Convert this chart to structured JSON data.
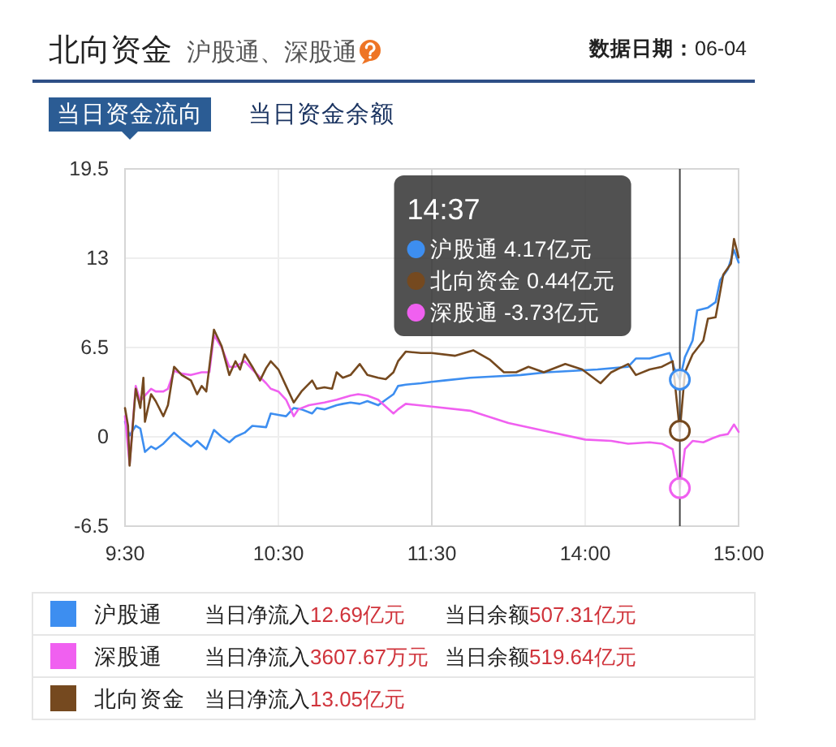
{
  "chart_data": [
    {
      "type": "line",
      "title": "北向资金",
      "subtitle": "沪股通、深股通",
      "annotations": [
        "数据日期：06-04",
        "当日资金流向",
        "当日资金余额",
        "当日净流入12.69亿元",
        "当日余额507.31亿元",
        "当日净流入3607.67万元",
        "当日余额519.64亿元",
        "当日净流入13.05亿元"
      ],
      "xlim": [
        9.5,
        11.5
      ],
      "xticks": [
        {
          "value": 9.5,
          "label": "9:30"
        },
        {
          "value": 10.5,
          "label": "10:30"
        },
        {
          "value": 11.5,
          "label": "11:30"
        }
      ],
      "ylim": [
        -6.5,
        19.5
      ],
      "yticks": [
        -6.5,
        0,
        6.5,
        13,
        19.5
      ],
      "grid": true,
      "legend": "bottom",
      "series": [
        {
          "name": "沪股通",
          "color": "#3d8ef0",
          "x": [
            9.5,
            9.53,
            9.57,
            9.6,
            9.63,
            9.67,
            9.7,
            9.75,
            9.82,
            9.87,
            9.93,
            9.97,
            10.03,
            10.08,
            10.13,
            10.18,
            10.22,
            10.28,
            10.33,
            10.42,
            10.45,
            10.5,
            10.55,
            10.6,
            10.65,
            10.72,
            10.75,
            10.8,
            10.88,
            10.92,
            10.97,
            11.03,
            11.08,
            11.15,
            11.2,
            11.25,
            11.28,
            11.33,
            11.43,
            11.5
          ],
          "values": [
            1.1,
            0.1,
            0.8,
            0.6,
            -1.1,
            -0.7,
            -0.9,
            -0.5,
            0.3,
            -0.2,
            -0.7,
            -0.3,
            -0.9,
            0.5,
            0.0,
            -0.4,
            0.0,
            0.3,
            0.8,
            0.7,
            1.7,
            1.6,
            1.5,
            2.1,
            2.0,
            1.7,
            2.1,
            2.0,
            2.3,
            2.4,
            2.5,
            2.4,
            2.6,
            2.3,
            2.7,
            3.1,
            3.7,
            3.8,
            3.9,
            4.0
          ]
        },
        {
          "name": "深股通",
          "color": "#f060f0",
          "x": [
            9.5,
            9.53,
            9.57,
            9.6,
            9.63,
            9.67,
            9.7,
            9.75,
            9.78,
            9.82,
            9.87,
            9.93,
            10,
            10.05,
            10.08,
            10.13,
            10.18,
            10.22,
            10.28,
            10.33,
            10.42,
            10.45,
            10.5,
            10.55,
            10.6,
            10.63,
            10.7,
            10.8,
            10.88,
            10.97,
            11.02,
            11.08,
            11.15,
            11.2,
            11.25,
            11.28,
            11.33,
            11.5
          ],
          "values": [
            1.5,
            -2.0,
            3.7,
            2.6,
            3.0,
            3.5,
            3.3,
            3.3,
            3.5,
            4.8,
            4.6,
            4.5,
            4.7,
            4.7,
            7.4,
            6.5,
            5.1,
            5.1,
            5.5,
            4.9,
            3.9,
            3.5,
            3.3,
            2.7,
            1.5,
            2.0,
            2.3,
            2.5,
            2.7,
            3.0,
            3.1,
            3.0,
            2.7,
            2.2,
            1.7,
            2.0,
            2.4,
            2.2
          ]
        },
        {
          "name": "北向资金",
          "color": "#75491f",
          "x": [
            9.5,
            9.52,
            9.53,
            9.57,
            9.6,
            9.62,
            9.63,
            9.67,
            9.7,
            9.75,
            9.78,
            9.82,
            9.87,
            9.93,
            9.97,
            10,
            10.03,
            10.08,
            10.13,
            10.18,
            10.22,
            10.25,
            10.28,
            10.33,
            10.38,
            10.42,
            10.45,
            10.5,
            10.55,
            10.6,
            10.65,
            10.72,
            10.75,
            10.8,
            10.85,
            10.88,
            10.92,
            10.97,
            11.03,
            11.08,
            11.15,
            11.2,
            11.25,
            11.28,
            11.33,
            11.43,
            11.5
          ],
          "values": [
            2.1,
            0.8,
            -2.1,
            3.5,
            2.1,
            4.3,
            1.1,
            3.1,
            2.6,
            1.5,
            2.3,
            5.1,
            4.5,
            4.1,
            3.1,
            3.7,
            3.3,
            7.8,
            6.6,
            4.5,
            5.5,
            4.9,
            6.0,
            5.1,
            4.1,
            5.0,
            5.5,
            4.9,
            3.7,
            2.5,
            3.3,
            4.1,
            3.5,
            3.6,
            3.5,
            4.7,
            4.3,
            4.5,
            5.3,
            4.5,
            4.3,
            4.2,
            4.7,
            5.5,
            6.2,
            6.1,
            6.1
          ]
        }
      ]
    },
    {
      "type": "line",
      "annotations": [
        "14:37",
        "沪股通 4.17亿元",
        "北向资金 0.44亿元",
        "深股通 -3.73亿元"
      ],
      "xlim": [
        13,
        15
      ],
      "xticks": [
        {
          "value": 14,
          "label": "14:00"
        },
        {
          "value": 15,
          "label": "15:00"
        }
      ],
      "ylim": [
        -6.5,
        19.5
      ],
      "yticks": [
        -6.5,
        0,
        6.5,
        13,
        19.5
      ],
      "tick_labels": "x",
      "grid": true,
      "ref_lines": [
        {
          "axis": "x",
          "value": 14.617
        }
      ],
      "series": [
        {
          "color": "#3d8ef0",
          "x": [
            13,
            13.08,
            13.25,
            13.42,
            13.58,
            13.75,
            13.92,
            14.08,
            14.28,
            14.33,
            14.42,
            14.48,
            14.55,
            14.58,
            14.617,
            14.65,
            14.7,
            14.73,
            14.8,
            14.85,
            14.88,
            14.93,
            14.97,
            15
          ],
          "values": [
            4.0,
            4.1,
            4.3,
            4.4,
            4.5,
            4.7,
            4.8,
            4.9,
            5.1,
            5.7,
            5.7,
            5.9,
            6.1,
            5.0,
            4.17,
            5.8,
            7.0,
            9.2,
            9.4,
            9.8,
            11.4,
            12.2,
            13.6,
            12.69
          ]
        },
        {
          "color": "#f060f0",
          "x": [
            13,
            13.25,
            13.5,
            13.75,
            14,
            14.17,
            14.28,
            14.42,
            14.5,
            14.57,
            14.617,
            14.65,
            14.7,
            14.77,
            14.83,
            14.88,
            14.93,
            14.97,
            15
          ],
          "values": [
            2.2,
            1.9,
            1.0,
            0.4,
            -0.2,
            -0.3,
            -0.5,
            -0.4,
            -0.5,
            -0.9,
            -3.73,
            -0.9,
            -0.3,
            -0.4,
            -0.1,
            0.1,
            0.2,
            0.9,
            0.36
          ]
        },
        {
          "color": "#75491f",
          "x": [
            13,
            13.15,
            13.27,
            13.38,
            13.47,
            13.55,
            13.63,
            13.73,
            13.87,
            13.98,
            14.1,
            14.17,
            14.28,
            14.33,
            14.42,
            14.5,
            14.57,
            14.617,
            14.65,
            14.7,
            14.77,
            14.8,
            14.85,
            14.9,
            14.95,
            14.97,
            15
          ],
          "values": [
            6.1,
            5.9,
            6.3,
            5.6,
            4.7,
            4.7,
            5.1,
            4.7,
            5.3,
            4.9,
            3.9,
            4.7,
            5.3,
            4.5,
            4.9,
            5.1,
            5.5,
            0.44,
            4.7,
            6.0,
            7.0,
            8.6,
            8.7,
            11.8,
            12.6,
            14.4,
            13.05
          ]
        }
      ]
    }
  ]
}
